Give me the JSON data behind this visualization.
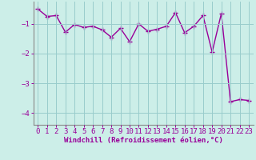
{
  "x": [
    0,
    1,
    2,
    3,
    4,
    5,
    6,
    7,
    8,
    9,
    10,
    11,
    12,
    13,
    14,
    15,
    16,
    17,
    18,
    19,
    20,
    21,
    22,
    23
  ],
  "y": [
    -0.5,
    -0.75,
    -0.72,
    -1.28,
    -1.02,
    -1.12,
    -1.08,
    -1.2,
    -1.45,
    -1.15,
    -1.6,
    -1.0,
    -1.25,
    -1.18,
    -1.08,
    -0.62,
    -1.3,
    -1.08,
    -0.72,
    -1.95,
    -0.65,
    -3.62,
    -3.55,
    -3.58
  ],
  "line_color": "#990099",
  "marker": "+",
  "markersize": 4,
  "linewidth": 1.0,
  "background_color": "#cceee8",
  "grid_color": "#99cccc",
  "xlabel": "Windchill (Refroidissement éolien,°C)",
  "xlabel_fontsize": 6.5,
  "tick_fontsize": 6.5,
  "ylim": [
    -4.4,
    -0.25
  ],
  "xlim": [
    -0.5,
    23.5
  ],
  "yticks": [
    -4,
    -3,
    -2,
    -1
  ],
  "xticks": [
    0,
    1,
    2,
    3,
    4,
    5,
    6,
    7,
    8,
    9,
    10,
    11,
    12,
    13,
    14,
    15,
    16,
    17,
    18,
    19,
    20,
    21,
    22,
    23
  ]
}
